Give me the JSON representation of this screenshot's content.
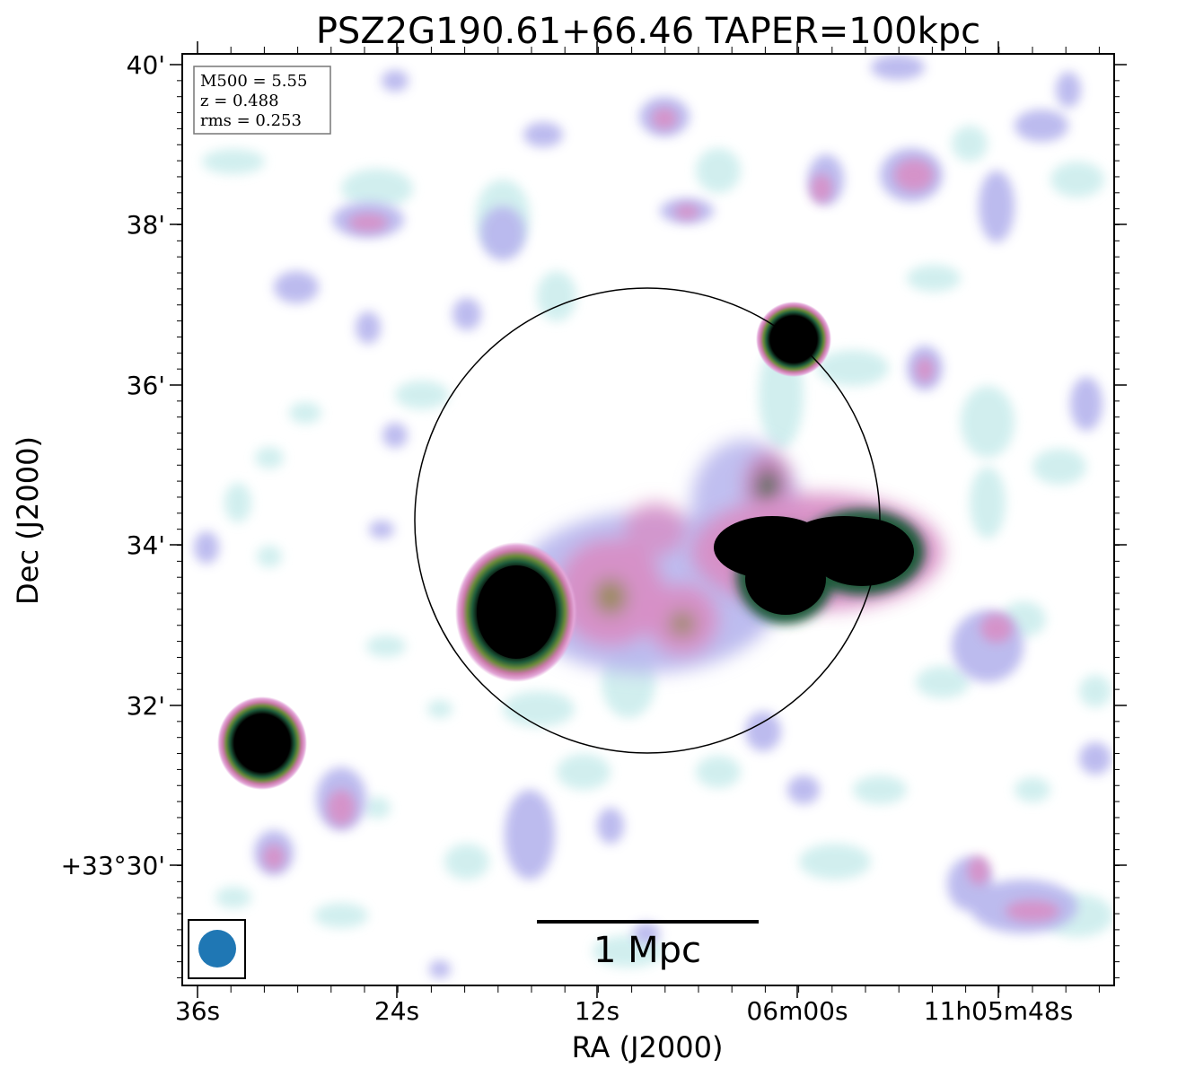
{
  "figure": {
    "title": "PSZ2G190.61+66.46 TAPER=100kpc",
    "xlabel": "RA (J2000)",
    "ylabel": "Dec (J2000)",
    "x_tick_labels": [
      "36s",
      "24s",
      "12s",
      "06m00s",
      "11h05m48s"
    ],
    "y_tick_labels": [
      "40'",
      "38'",
      "36'",
      "34'",
      "32'",
      "+33°30'"
    ],
    "info_box": {
      "line1": "M500 = 5.55",
      "line2": "z = 0.488",
      "line3": "rms = 0.253"
    },
    "scale_bar_label": "1 Mpc",
    "colors": {
      "low_emission": "#c9ecec",
      "mid_emission": "#b3b6ec",
      "high_emission": "#d98fc8",
      "saturated": "#000000",
      "beam": "#1f77b4"
    },
    "beam_icon": "beam-ellipse-icon"
  }
}
